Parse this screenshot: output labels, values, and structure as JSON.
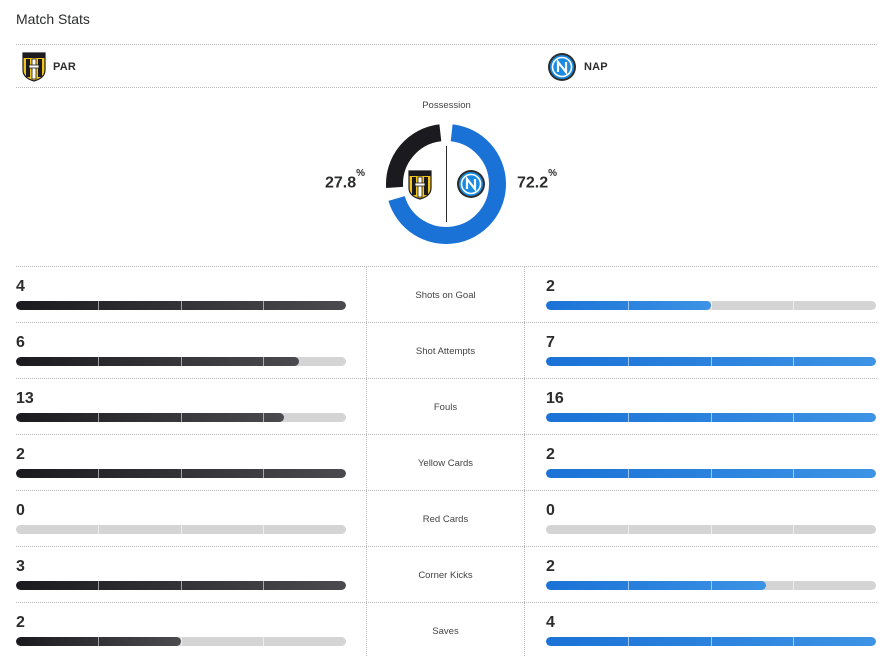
{
  "title": "Match Stats",
  "teams": {
    "home": {
      "abbr": "PAR",
      "color": "#1b1b1f",
      "crest": "parma-crest-icon"
    },
    "away": {
      "abbr": "NAP",
      "color": "#1a72d6",
      "crest": "napoli-crest-icon"
    }
  },
  "possession": {
    "label": "Possession",
    "home_value": "27.8",
    "away_value": "72.2",
    "unit": "%",
    "home_fraction": 0.278,
    "away_fraction": 0.722
  },
  "stats": [
    {
      "label": "Shots on Goal",
      "home": "4",
      "away": "2",
      "home_fill": 1.0,
      "away_fill": 0.5
    },
    {
      "label": "Shot Attempts",
      "home": "6",
      "away": "7",
      "home_fill": 0.857,
      "away_fill": 1.0
    },
    {
      "label": "Fouls",
      "home": "13",
      "away": "16",
      "home_fill": 0.8125,
      "away_fill": 1.0
    },
    {
      "label": "Yellow Cards",
      "home": "2",
      "away": "2",
      "home_fill": 1.0,
      "away_fill": 1.0
    },
    {
      "label": "Red Cards",
      "home": "0",
      "away": "0",
      "home_fill": 0,
      "away_fill": 0
    },
    {
      "label": "Corner Kicks",
      "home": "3",
      "away": "2",
      "home_fill": 1.0,
      "away_fill": 0.667
    },
    {
      "label": "Saves",
      "home": "2",
      "away": "4",
      "home_fill": 0.5,
      "away_fill": 1.0
    }
  ]
}
